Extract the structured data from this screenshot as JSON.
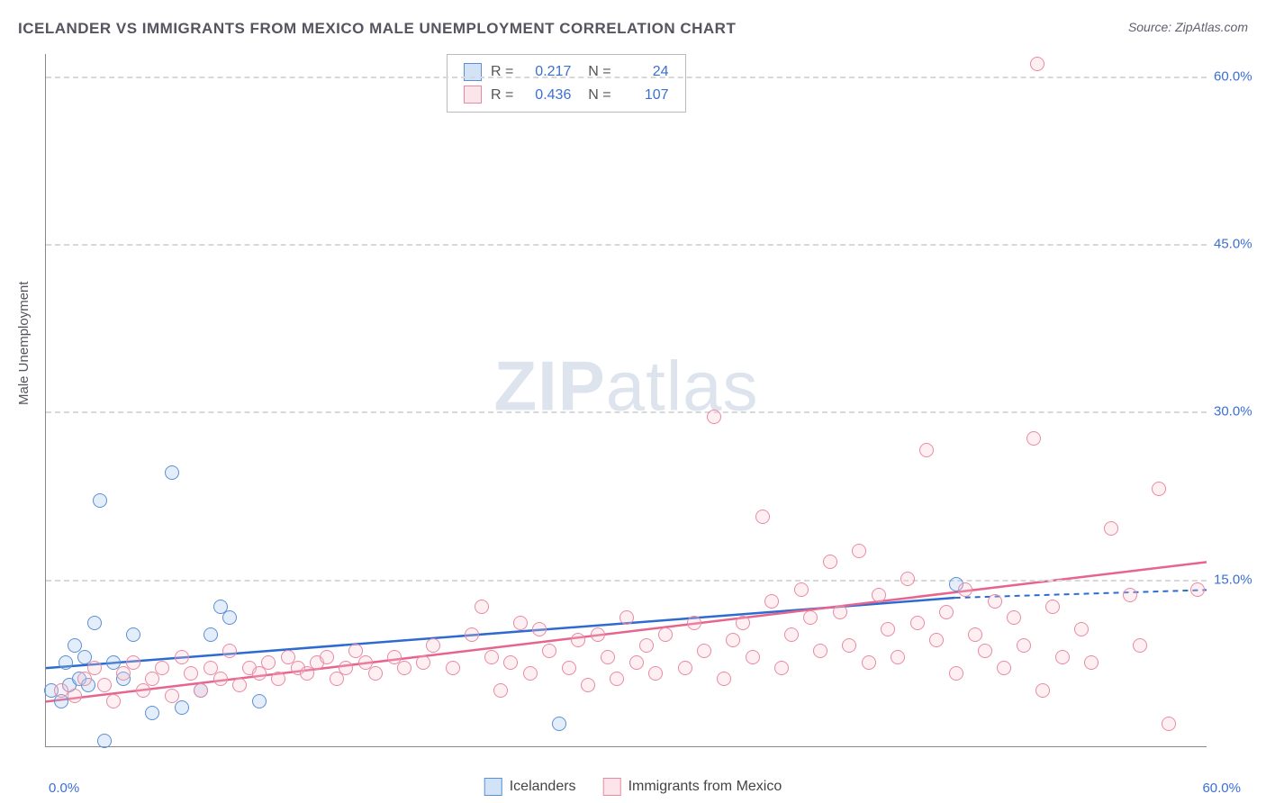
{
  "title": "ICELANDER VS IMMIGRANTS FROM MEXICO MALE UNEMPLOYMENT CORRELATION CHART",
  "source": "Source: ZipAtlas.com",
  "y_axis_label": "Male Unemployment",
  "watermark": {
    "bold": "ZIP",
    "rest": "atlas"
  },
  "chart": {
    "type": "scatter",
    "background_color": "#ffffff",
    "grid_color": "#d8d8d8",
    "axis_color": "#888888",
    "tick_color": "#3b6fd4",
    "xlim": [
      0,
      60
    ],
    "ylim": [
      0,
      62
    ],
    "y_ticks": [
      15,
      30,
      45,
      60
    ],
    "y_tick_labels": [
      "15.0%",
      "30.0%",
      "45.0%",
      "60.0%"
    ],
    "x_ticks": [
      0,
      60
    ],
    "x_tick_labels": [
      "0.0%",
      "60.0%"
    ],
    "marker_radius": 8,
    "marker_border_width": 1.5,
    "marker_fill_opacity": 0.28,
    "series": [
      {
        "id": "icelanders",
        "label": "Icelanders",
        "color_fill": "#9dc1ee",
        "color_border": "#5a8fd6",
        "color_line": "#2e6bd0",
        "r": 0.217,
        "n": 24,
        "trend": {
          "x1": 0,
          "y1": 7.0,
          "x2": 47,
          "y2": 13.3,
          "solid_until_x": 47,
          "extend_to_x": 60,
          "extend_y": 14.0
        },
        "points": [
          [
            0.3,
            5.0
          ],
          [
            0.8,
            4.0
          ],
          [
            1.0,
            7.5
          ],
          [
            1.2,
            5.5
          ],
          [
            1.5,
            9.0
          ],
          [
            1.7,
            6.0
          ],
          [
            2.0,
            8.0
          ],
          [
            2.2,
            5.5
          ],
          [
            2.5,
            11.0
          ],
          [
            2.8,
            22.0
          ],
          [
            3.0,
            0.5
          ],
          [
            3.5,
            7.5
          ],
          [
            4.0,
            6.0
          ],
          [
            4.5,
            10.0
          ],
          [
            5.5,
            3.0
          ],
          [
            6.5,
            24.5
          ],
          [
            7.0,
            3.5
          ],
          [
            8.0,
            5.0
          ],
          [
            8.5,
            10.0
          ],
          [
            9.0,
            12.5
          ],
          [
            9.5,
            11.5
          ],
          [
            11.0,
            4.0
          ],
          [
            26.5,
            2.0
          ],
          [
            47.0,
            14.5
          ]
        ]
      },
      {
        "id": "immigrants_mexico",
        "label": "Immigrants from Mexico",
        "color_fill": "#f7c5d1",
        "color_border": "#e88aa2",
        "color_line": "#e6648e",
        "r": 0.436,
        "n": 107,
        "trend": {
          "x1": 0,
          "y1": 4.0,
          "x2": 60,
          "y2": 16.5,
          "solid_until_x": 60,
          "extend_to_x": 60,
          "extend_y": 16.5
        },
        "points": [
          [
            0.8,
            5.0
          ],
          [
            1.5,
            4.5
          ],
          [
            2.0,
            6.0
          ],
          [
            2.5,
            7.0
          ],
          [
            3.0,
            5.5
          ],
          [
            3.5,
            4.0
          ],
          [
            4.0,
            6.5
          ],
          [
            4.5,
            7.5
          ],
          [
            5.0,
            5.0
          ],
          [
            5.5,
            6.0
          ],
          [
            6.0,
            7.0
          ],
          [
            6.5,
            4.5
          ],
          [
            7.0,
            8.0
          ],
          [
            7.5,
            6.5
          ],
          [
            8.0,
            5.0
          ],
          [
            8.5,
            7.0
          ],
          [
            9.0,
            6.0
          ],
          [
            9.5,
            8.5
          ],
          [
            10.0,
            5.5
          ],
          [
            10.5,
            7.0
          ],
          [
            11.0,
            6.5
          ],
          [
            11.5,
            7.5
          ],
          [
            12.0,
            6.0
          ],
          [
            12.5,
            8.0
          ],
          [
            13.0,
            7.0
          ],
          [
            13.5,
            6.5
          ],
          [
            14.0,
            7.5
          ],
          [
            14.5,
            8.0
          ],
          [
            15.0,
            6.0
          ],
          [
            15.5,
            7.0
          ],
          [
            16.0,
            8.5
          ],
          [
            16.5,
            7.5
          ],
          [
            17.0,
            6.5
          ],
          [
            18.0,
            8.0
          ],
          [
            18.5,
            7.0
          ],
          [
            19.5,
            7.5
          ],
          [
            20.0,
            9.0
          ],
          [
            21.0,
            7.0
          ],
          [
            22.0,
            10.0
          ],
          [
            22.5,
            12.5
          ],
          [
            23.0,
            8.0
          ],
          [
            23.5,
            5.0
          ],
          [
            24.0,
            7.5
          ],
          [
            24.5,
            11.0
          ],
          [
            25.0,
            6.5
          ],
          [
            25.5,
            10.5
          ],
          [
            26.0,
            8.5
          ],
          [
            27.0,
            7.0
          ],
          [
            27.5,
            9.5
          ],
          [
            28.0,
            5.5
          ],
          [
            28.5,
            10.0
          ],
          [
            29.0,
            8.0
          ],
          [
            29.5,
            6.0
          ],
          [
            30.0,
            11.5
          ],
          [
            30.5,
            7.5
          ],
          [
            31.0,
            9.0
          ],
          [
            31.5,
            6.5
          ],
          [
            32.0,
            10.0
          ],
          [
            33.0,
            7.0
          ],
          [
            33.5,
            11.0
          ],
          [
            34.0,
            8.5
          ],
          [
            34.5,
            29.5
          ],
          [
            35.0,
            6.0
          ],
          [
            35.5,
            9.5
          ],
          [
            36.0,
            11.0
          ],
          [
            36.5,
            8.0
          ],
          [
            37.0,
            20.5
          ],
          [
            37.5,
            13.0
          ],
          [
            38.0,
            7.0
          ],
          [
            38.5,
            10.0
          ],
          [
            39.0,
            14.0
          ],
          [
            39.5,
            11.5
          ],
          [
            40.0,
            8.5
          ],
          [
            40.5,
            16.5
          ],
          [
            41.0,
            12.0
          ],
          [
            41.5,
            9.0
          ],
          [
            42.0,
            17.5
          ],
          [
            42.5,
            7.5
          ],
          [
            43.0,
            13.5
          ],
          [
            43.5,
            10.5
          ],
          [
            44.0,
            8.0
          ],
          [
            44.5,
            15.0
          ],
          [
            45.0,
            11.0
          ],
          [
            45.5,
            26.5
          ],
          [
            46.0,
            9.5
          ],
          [
            46.5,
            12.0
          ],
          [
            47.0,
            6.5
          ],
          [
            47.5,
            14.0
          ],
          [
            48.0,
            10.0
          ],
          [
            48.5,
            8.5
          ],
          [
            49.0,
            13.0
          ],
          [
            49.5,
            7.0
          ],
          [
            50.0,
            11.5
          ],
          [
            50.5,
            9.0
          ],
          [
            51.0,
            27.5
          ],
          [
            51.2,
            61.0
          ],
          [
            51.5,
            5.0
          ],
          [
            52.0,
            12.5
          ],
          [
            52.5,
            8.0
          ],
          [
            53.5,
            10.5
          ],
          [
            54.0,
            7.5
          ],
          [
            55.0,
            19.5
          ],
          [
            56.0,
            13.5
          ],
          [
            56.5,
            9.0
          ],
          [
            57.5,
            23.0
          ],
          [
            58.0,
            2.0
          ],
          [
            59.5,
            14.0
          ]
        ]
      }
    ]
  },
  "top_legend_header": {
    "r_label": "R =",
    "n_label": "N ="
  },
  "bottom_legend": [
    {
      "series": "icelanders"
    },
    {
      "series": "immigrants_mexico"
    }
  ]
}
